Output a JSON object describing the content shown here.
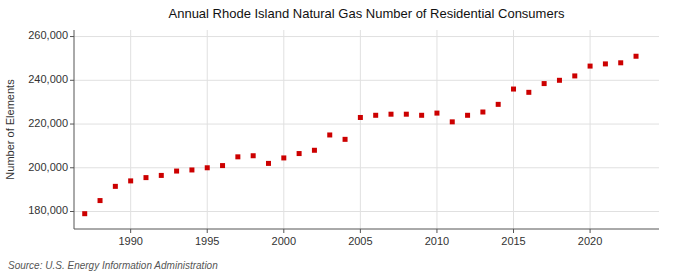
{
  "chart_data": {
    "type": "scatter",
    "title": "Annual Rhode Island Natural Gas Number of Residential Consumers",
    "ylabel": "Number of Elements",
    "source": "Source: U.S. Energy Information Administration",
    "x": [
      1987,
      1988,
      1989,
      1990,
      1991,
      1992,
      1993,
      1994,
      1995,
      1996,
      1997,
      1998,
      1999,
      2000,
      2001,
      2002,
      2003,
      2004,
      2005,
      2006,
      2007,
      2008,
      2009,
      2010,
      2011,
      2012,
      2013,
      2014,
      2015,
      2016,
      2017,
      2018,
      2019,
      2020,
      2021,
      2022,
      2023
    ],
    "values": [
      179000,
      185000,
      191500,
      194000,
      195500,
      196500,
      198500,
      199000,
      200000,
      201000,
      205000,
      205500,
      202000,
      204500,
      206500,
      208000,
      215000,
      213000,
      223000,
      224000,
      224500,
      224500,
      224000,
      225000,
      221000,
      224000,
      225500,
      229000,
      236000,
      234500,
      238500,
      240000,
      242000,
      246500,
      247500,
      248000,
      251000
    ],
    "color": "#cc0000",
    "marker": "square",
    "xlim": [
      1986.3,
      2024.5
    ],
    "xticks": [
      1990,
      1995,
      2000,
      2005,
      2010,
      2015,
      2020
    ],
    "ylim": [
      172000,
      263000
    ],
    "yticks": [
      {
        "value": 180000,
        "label": "180,000"
      },
      {
        "value": 200000,
        "label": "200,000"
      },
      {
        "value": 220000,
        "label": "220,000"
      },
      {
        "value": 240000,
        "label": "240,000"
      },
      {
        "value": 260000,
        "label": "260,000"
      }
    ],
    "grid": true
  }
}
